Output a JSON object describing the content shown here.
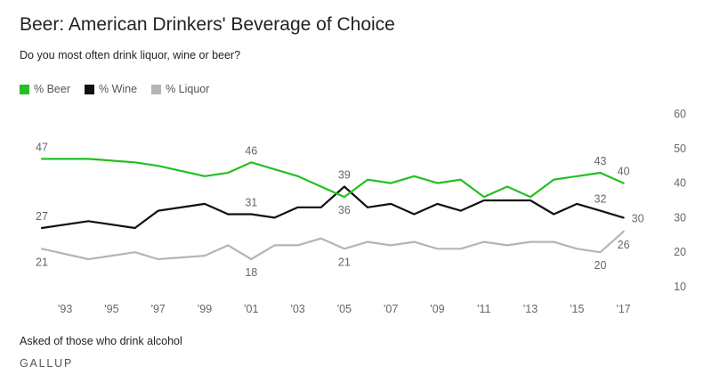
{
  "title": "Beer: American Drinkers' Beverage of Choice",
  "subtitle": "Do you most often drink liquor, wine or beer?",
  "footnote": "Asked of those who drink alcohol",
  "source": "GALLUP",
  "chart_data": {
    "type": "line",
    "ylim": [
      10,
      60
    ],
    "y_ticks": [
      10,
      20,
      30,
      40,
      50,
      60
    ],
    "y_axis_position": "right",
    "xlim": [
      1992,
      2018.2
    ],
    "x_ticks": [
      {
        "value": 1993,
        "label": "'93"
      },
      {
        "value": 1995,
        "label": "'95"
      },
      {
        "value": 1997,
        "label": "'97"
      },
      {
        "value": 1999,
        "label": "'99"
      },
      {
        "value": 2001,
        "label": "'01"
      },
      {
        "value": 2003,
        "label": "'03"
      },
      {
        "value": 2005,
        "label": "'05"
      },
      {
        "value": 2007,
        "label": "'07"
      },
      {
        "value": 2009,
        "label": "'09"
      },
      {
        "value": 2011,
        "label": "'11"
      },
      {
        "value": 2013,
        "label": "'13"
      },
      {
        "value": 2015,
        "label": "'15"
      },
      {
        "value": 2017,
        "label": "'17"
      }
    ],
    "grid": false,
    "legend_position": "top-left",
    "series": [
      {
        "name": "% Beer",
        "color": "#22c022",
        "points": [
          [
            1992,
            47
          ],
          [
            1994,
            47
          ],
          [
            1996,
            46
          ],
          [
            1997,
            45
          ],
          [
            1999,
            42
          ],
          [
            2000,
            43
          ],
          [
            2001,
            46
          ],
          [
            2003,
            42
          ],
          [
            2004,
            39
          ],
          [
            2005,
            36
          ],
          [
            2006,
            41
          ],
          [
            2007,
            40
          ],
          [
            2008,
            42
          ],
          [
            2009,
            40
          ],
          [
            2010,
            41
          ],
          [
            2011,
            36
          ],
          [
            2012,
            39
          ],
          [
            2013,
            36
          ],
          [
            2014,
            41
          ],
          [
            2016,
            43
          ],
          [
            2017,
            40
          ]
        ],
        "labels": [
          {
            "x": 1992,
            "text": "47",
            "pos": "above"
          },
          {
            "x": 2001,
            "text": "46",
            "pos": "above"
          },
          {
            "x": 2005,
            "text": "36",
            "pos": "below"
          },
          {
            "x": 2016,
            "text": "43",
            "pos": "above"
          },
          {
            "x": 2017,
            "text": "40",
            "pos": "above"
          }
        ]
      },
      {
        "name": "% Wine",
        "color": "#111111",
        "points": [
          [
            1992,
            27
          ],
          [
            1994,
            29
          ],
          [
            1996,
            27
          ],
          [
            1997,
            32
          ],
          [
            1999,
            34
          ],
          [
            2000,
            31
          ],
          [
            2001,
            31
          ],
          [
            2002,
            30
          ],
          [
            2003,
            33
          ],
          [
            2004,
            33
          ],
          [
            2005,
            39
          ],
          [
            2006,
            33
          ],
          [
            2007,
            34
          ],
          [
            2008,
            31
          ],
          [
            2009,
            34
          ],
          [
            2010,
            32
          ],
          [
            2011,
            35
          ],
          [
            2013,
            35
          ],
          [
            2014,
            31
          ],
          [
            2015,
            34
          ],
          [
            2016,
            32
          ],
          [
            2017,
            30
          ]
        ],
        "labels": [
          {
            "x": 1992,
            "text": "27",
            "pos": "above"
          },
          {
            "x": 2001,
            "text": "31",
            "pos": "above"
          },
          {
            "x": 2005,
            "text": "39",
            "pos": "above"
          },
          {
            "x": 2016,
            "text": "32",
            "pos": "above"
          },
          {
            "x": 2017,
            "text": "30",
            "pos": "right"
          }
        ]
      },
      {
        "name": "% Liquor",
        "color": "#b5b5b5",
        "points": [
          [
            1992,
            21
          ],
          [
            1994,
            18
          ],
          [
            1996,
            20
          ],
          [
            1997,
            18
          ],
          [
            1999,
            19
          ],
          [
            2000,
            22
          ],
          [
            2001,
            18
          ],
          [
            2002,
            22
          ],
          [
            2003,
            22
          ],
          [
            2004,
            24
          ],
          [
            2005,
            21
          ],
          [
            2006,
            23
          ],
          [
            2007,
            22
          ],
          [
            2008,
            23
          ],
          [
            2009,
            21
          ],
          [
            2010,
            21
          ],
          [
            2011,
            23
          ],
          [
            2012,
            22
          ],
          [
            2013,
            23
          ],
          [
            2014,
            23
          ],
          [
            2015,
            21
          ],
          [
            2016,
            20
          ],
          [
            2017,
            26
          ]
        ],
        "labels": [
          {
            "x": 1992,
            "text": "21",
            "pos": "below"
          },
          {
            "x": 2001,
            "text": "18",
            "pos": "below"
          },
          {
            "x": 2005,
            "text": "21",
            "pos": "below"
          },
          {
            "x": 2016,
            "text": "20",
            "pos": "below"
          },
          {
            "x": 2017,
            "text": "26",
            "pos": "below"
          }
        ]
      }
    ]
  }
}
